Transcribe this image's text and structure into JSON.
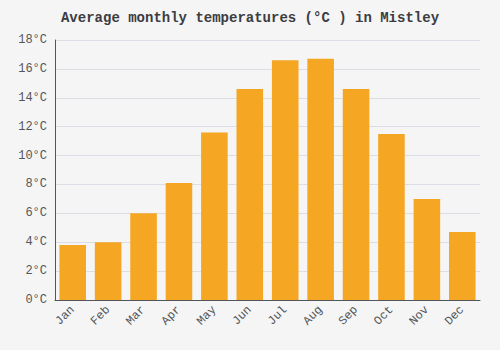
{
  "chart_data": {
    "type": "bar",
    "title": "Average monthly temperatures (°C ) in Mistley",
    "categories": [
      "Jan",
      "Feb",
      "Mar",
      "Apr",
      "May",
      "Jun",
      "Jul",
      "Aug",
      "Sep",
      "Oct",
      "Nov",
      "Dec"
    ],
    "values": [
      3.8,
      4.0,
      6.0,
      8.1,
      11.6,
      14.6,
      16.6,
      16.7,
      14.6,
      11.5,
      7.0,
      4.7
    ],
    "color": "#F5A623",
    "ylim": [
      0,
      18
    ],
    "yticks": [
      {
        "value": 0,
        "label": "0°C"
      },
      {
        "value": 2,
        "label": "2°C"
      },
      {
        "value": 4,
        "label": "4°C"
      },
      {
        "value": 6,
        "label": "6°C"
      },
      {
        "value": 8,
        "label": "8°C"
      },
      {
        "value": 10,
        "label": "10°C"
      },
      {
        "value": 12,
        "label": "12°C"
      },
      {
        "value": 14,
        "label": "14°C"
      },
      {
        "value": 16,
        "label": "16°C"
      },
      {
        "value": 18,
        "label": "18°C"
      }
    ],
    "grid": true
  }
}
